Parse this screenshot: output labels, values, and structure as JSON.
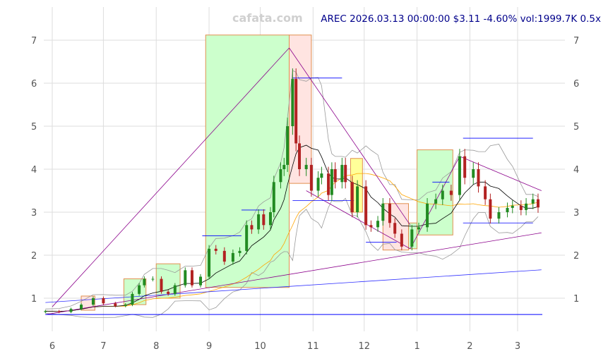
{
  "watermark": "cafata.com",
  "title": "AREC 2026.03.13 00:00:00 $3.11 -4.60% vol:1999.7K 0.5x",
  "chart_data": {
    "type": "candlestick",
    "ticker": "AREC",
    "ylim": [
      0.2,
      7.8
    ],
    "xlim": [
      "2025-05-26",
      "2026-03-28"
    ],
    "yticks": [
      1,
      2,
      3,
      4,
      5,
      6,
      7
    ],
    "xticks": [
      {
        "date": "2025-06-01",
        "label": "6"
      },
      {
        "date": "2025-07-01",
        "label": "7"
      },
      {
        "date": "2025-08-01",
        "label": "8"
      },
      {
        "date": "2025-09-01",
        "label": "9"
      },
      {
        "date": "2025-10-01",
        "label": "10"
      },
      {
        "date": "2025-11-01",
        "label": "11"
      },
      {
        "date": "2025-12-01",
        "label": "12"
      },
      {
        "date": "2026-01-01",
        "label": "1"
      },
      {
        "date": "2026-02-01",
        "label": "2"
      },
      {
        "date": "2026-03-01",
        "label": "3"
      }
    ],
    "grid": true,
    "colors": {
      "up": "#228b22",
      "down": "#b22222",
      "grid": "#dddddd",
      "ma_short": "#000000",
      "ma_long": "#ffa500",
      "band": "#999999",
      "trend": "#8b008b",
      "level": "#0000ff"
    },
    "closes": [
      [
        "2025-05-28",
        0.7
      ],
      [
        "2025-06-05",
        0.68
      ],
      [
        "2025-06-12",
        0.75
      ],
      [
        "2025-06-18",
        0.85
      ],
      [
        "2025-06-25",
        1.0
      ],
      [
        "2025-07-01",
        0.88
      ],
      [
        "2025-07-08",
        0.82
      ],
      [
        "2025-07-14",
        0.85
      ],
      [
        "2025-07-18",
        1.1
      ],
      [
        "2025-07-22",
        1.3
      ],
      [
        "2025-07-25",
        1.45
      ],
      [
        "2025-07-30",
        1.45
      ],
      [
        "2025-08-04",
        1.15
      ],
      [
        "2025-08-08",
        1.1
      ],
      [
        "2025-08-12",
        1.3
      ],
      [
        "2025-08-18",
        1.65
      ],
      [
        "2025-08-22",
        1.3
      ],
      [
        "2025-08-27",
        1.5
      ],
      [
        "2025-09-01",
        2.15
      ],
      [
        "2025-09-05",
        2.1
      ],
      [
        "2025-09-10",
        1.85
      ],
      [
        "2025-09-15",
        2.05
      ],
      [
        "2025-09-19",
        2.1
      ],
      [
        "2025-09-23",
        2.7
      ],
      [
        "2025-09-26",
        2.6
      ],
      [
        "2025-09-30",
        2.95
      ],
      [
        "2025-10-03",
        2.7
      ],
      [
        "2025-10-07",
        3.0
      ],
      [
        "2025-10-09",
        3.7
      ],
      [
        "2025-10-13",
        4.0
      ],
      [
        "2025-10-15",
        4.1
      ],
      [
        "2025-10-17",
        5.0
      ],
      [
        "2025-10-20",
        6.1
      ],
      [
        "2025-10-22",
        4.6
      ],
      [
        "2025-10-24",
        4.0
      ],
      [
        "2025-10-28",
        4.1
      ],
      [
        "2025-10-31",
        3.5
      ],
      [
        "2025-11-04",
        3.8
      ],
      [
        "2025-11-06",
        3.9
      ],
      [
        "2025-11-10",
        3.4
      ],
      [
        "2025-11-12",
        4.0
      ],
      [
        "2025-11-14",
        3.7
      ],
      [
        "2025-11-18",
        4.1
      ],
      [
        "2025-11-20",
        3.7
      ],
      [
        "2025-11-24",
        3.0
      ],
      [
        "2025-11-27",
        3.6
      ],
      [
        "2025-12-02",
        2.7
      ],
      [
        "2025-12-05",
        2.65
      ],
      [
        "2025-12-09",
        2.8
      ],
      [
        "2025-12-12",
        3.2
      ],
      [
        "2025-12-16",
        2.75
      ],
      [
        "2025-12-19",
        2.5
      ],
      [
        "2025-12-23",
        2.2
      ],
      [
        "2025-12-29",
        2.6
      ],
      [
        "2026-01-02",
        2.65
      ],
      [
        "2026-01-07",
        3.2
      ],
      [
        "2026-01-12",
        3.3
      ],
      [
        "2026-01-16",
        3.5
      ],
      [
        "2026-01-21",
        3.4
      ],
      [
        "2026-01-26",
        4.3
      ],
      [
        "2026-01-29",
        3.8
      ],
      [
        "2026-02-03",
        4.0
      ],
      [
        "2026-02-06",
        3.6
      ],
      [
        "2026-02-10",
        3.3
      ],
      [
        "2026-02-13",
        2.85
      ],
      [
        "2026-02-18",
        3.0
      ],
      [
        "2026-02-23",
        3.1
      ],
      [
        "2026-02-26",
        3.15
      ],
      [
        "2026-03-03",
        3.05
      ],
      [
        "2026-03-06",
        3.2
      ],
      [
        "2026-03-10",
        3.3
      ],
      [
        "2026-03-13",
        3.11
      ]
    ],
    "zones": [
      {
        "from": "2025-06-18",
        "to": "2025-06-26",
        "high": 1.05,
        "low": 0.72,
        "color": "#ffe4e1"
      },
      {
        "from": "2025-07-13",
        "to": "2025-07-26",
        "high": 1.45,
        "low": 0.85,
        "color": "#ccffcc"
      },
      {
        "from": "2025-08-01",
        "to": "2025-08-15",
        "high": 1.8,
        "low": 1.0,
        "color": "#ccffcc"
      },
      {
        "from": "2025-08-30",
        "to": "2025-10-18",
        "high": 7.12,
        "low": 1.25,
        "color": "#ccffcc"
      },
      {
        "from": "2025-10-18",
        "to": "2025-10-31",
        "high": 7.12,
        "low": 3.67,
        "color": "#ffe4e1"
      },
      {
        "from": "2025-11-23",
        "to": "2025-11-30",
        "high": 4.25,
        "low": 3.0,
        "color": "#ffff99"
      },
      {
        "from": "2025-12-12",
        "to": "2025-12-27",
        "high": 3.2,
        "low": 2.12,
        "color": "#ffe4e1"
      },
      {
        "from": "2025-12-27",
        "to": "2026-01-01",
        "high": 2.75,
        "low": 2.15,
        "color": "#ccffcc"
      },
      {
        "from": "2026-01-01",
        "to": "2026-01-22",
        "high": 4.45,
        "low": 2.47,
        "color": "#ccffcc"
      }
    ],
    "levels": [
      {
        "from": "2025-08-28",
        "to": "2025-09-20",
        "value": 2.45
      },
      {
        "from": "2025-09-20",
        "to": "2025-10-04",
        "value": 3.05
      },
      {
        "from": "2025-10-20",
        "to": "2025-11-18",
        "value": 6.12
      },
      {
        "from": "2025-10-20",
        "to": "2025-11-25",
        "value": 3.27
      },
      {
        "from": "2025-12-02",
        "to": "2025-12-20",
        "value": 2.3
      },
      {
        "from": "2026-01-10",
        "to": "2026-01-20",
        "value": 3.7
      },
      {
        "from": "2026-01-28",
        "to": "2026-03-10",
        "value": 4.72
      },
      {
        "from": "2026-01-28",
        "to": "2026-03-10",
        "value": 2.75
      }
    ],
    "trendlines": [
      {
        "from": [
          "2025-06-01",
          0.8
        ],
        "to": [
          "2025-10-18",
          6.82
        ]
      },
      {
        "from": [
          "2025-10-18",
          6.82
        ],
        "to": [
          "2025-12-28",
          2.7
        ]
      },
      {
        "from": [
          "2025-10-28",
          3.5
        ],
        "to": [
          "2025-12-28",
          2.15
        ]
      },
      {
        "from": [
          "2025-12-28",
          2.15
        ],
        "to": [
          "2026-01-26",
          4.3
        ]
      },
      {
        "from": [
          "2026-01-26",
          4.3
        ],
        "to": [
          "2026-03-15",
          3.5
        ]
      },
      {
        "from": [
          "2025-05-28",
          0.62
        ],
        "to": [
          "2026-03-15",
          2.52
        ]
      },
      {
        "from": [
          "2025-05-28",
          0.9
        ],
        "to": [
          "2026-03-15",
          1.66
        ]
      }
    ],
    "baseline": 0.62
  }
}
